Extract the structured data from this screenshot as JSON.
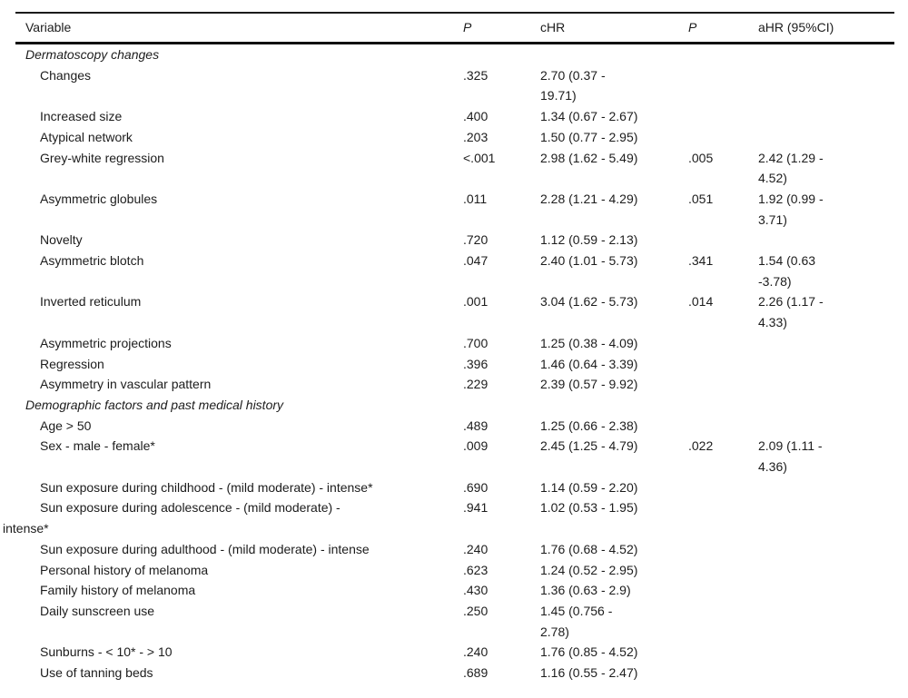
{
  "table": {
    "columns": [
      "Variable",
      "P",
      "cHR",
      "P",
      "aHR (95%CI)"
    ],
    "rows": [
      {
        "type": "section",
        "label": "Dermatoscopy changes",
        "p": "",
        "chr": "",
        "p2": "",
        "ahr": ""
      },
      {
        "type": "item",
        "label": "Changes",
        "p": ".325",
        "chr": "2.70 (0.37 -\n19.71)",
        "p2": "",
        "ahr": ""
      },
      {
        "type": "item",
        "label": "Increased size",
        "p": ".400",
        "chr": "1.34 (0.67 - 2.67)",
        "p2": "",
        "ahr": ""
      },
      {
        "type": "item",
        "label": "Atypical network",
        "p": ".203",
        "chr": "1.50 (0.77 - 2.95)",
        "p2": "",
        "ahr": ""
      },
      {
        "type": "item",
        "label": "Grey-white regression",
        "p": "<.001",
        "chr": "2.98 (1.62 - 5.49)",
        "p2": ".005",
        "ahr": "2.42 (1.29 -\n4.52)"
      },
      {
        "type": "item",
        "label": "Asymmetric globules",
        "p": ".011",
        "chr": "2.28 (1.21 - 4.29)",
        "p2": ".051",
        "ahr": "1.92 (0.99 -\n3.71)"
      },
      {
        "type": "item",
        "label": "Novelty",
        "p": ".720",
        "chr": "1.12 (0.59 - 2.13)",
        "p2": "",
        "ahr": ""
      },
      {
        "type": "item",
        "label": "Asymmetric blotch",
        "p": ".047",
        "chr": "2.40 (1.01 - 5.73)",
        "p2": ".341",
        "ahr": "1.54 (0.63\n-3.78)"
      },
      {
        "type": "item",
        "label": "Inverted reticulum",
        "p": ".001",
        "chr": "3.04 (1.62 - 5.73)",
        "p2": ".014",
        "ahr": "2.26 (1.17 -\n4.33)"
      },
      {
        "type": "item",
        "label": "Asymmetric projections",
        "p": ".700",
        "chr": "1.25 (0.38 - 4.09)",
        "p2": "",
        "ahr": ""
      },
      {
        "type": "item",
        "label": "Regression",
        "p": ".396",
        "chr": "1.46 (0.64 - 3.39)",
        "p2": "",
        "ahr": ""
      },
      {
        "type": "item",
        "label": "Asymmetry in vascular pattern",
        "p": ".229",
        "chr": "2.39 (0.57 - 9.92)",
        "p2": "",
        "ahr": ""
      },
      {
        "type": "section",
        "label": "Demographic factors and past medical history",
        "p": "",
        "chr": "",
        "p2": "",
        "ahr": ""
      },
      {
        "type": "item",
        "label": "Age > 50",
        "p": ".489",
        "chr": "1.25 (0.66 - 2.38)",
        "p2": "",
        "ahr": ""
      },
      {
        "type": "item",
        "label": "Sex - male - female*",
        "p": ".009",
        "chr": "2.45 (1.25 - 4.79)",
        "p2": ".022",
        "ahr": "2.09 (1.11 -\n4.36)"
      },
      {
        "type": "item",
        "label": "Sun exposure during childhood - (mild moderate) - intense*",
        "p": ".690",
        "chr": "1.14 (0.59 - 2.20)",
        "p2": "",
        "ahr": ""
      },
      {
        "type": "item",
        "label": "Sun exposure during adolescence - (mild moderate) -\nintense*",
        "p": ".941",
        "chr": "1.02 (0.53 - 1.95)",
        "p2": "",
        "ahr": ""
      },
      {
        "type": "item",
        "label": "Sun exposure during adulthood - (mild moderate) - intense",
        "p": ".240",
        "chr": "1.76 (0.68 - 4.52)",
        "p2": "",
        "ahr": ""
      },
      {
        "type": "item",
        "label": "Personal history of melanoma",
        "p": ".623",
        "chr": "1.24 (0.52 - 2.95)",
        "p2": "",
        "ahr": ""
      },
      {
        "type": "item",
        "label": "Family history of melanoma",
        "p": ".430",
        "chr": "1.36 (0.63 - 2.9)",
        "p2": "",
        "ahr": ""
      },
      {
        "type": "item",
        "label": "Daily sunscreen use",
        "p": ".250",
        "chr": "1.45 (0.756 -\n2.78)",
        "p2": "",
        "ahr": ""
      },
      {
        "type": "item",
        "label": "Sunburns - < 10* - > 10",
        "p": ".240",
        "chr": "1.76 (0.85 - 4.52)",
        "p2": "",
        "ahr": ""
      },
      {
        "type": "item",
        "label": "Use of tanning beds",
        "p": ".689",
        "chr": "1.16 (0.55 - 2.47)",
        "p2": "",
        "ahr": ""
      }
    ]
  }
}
